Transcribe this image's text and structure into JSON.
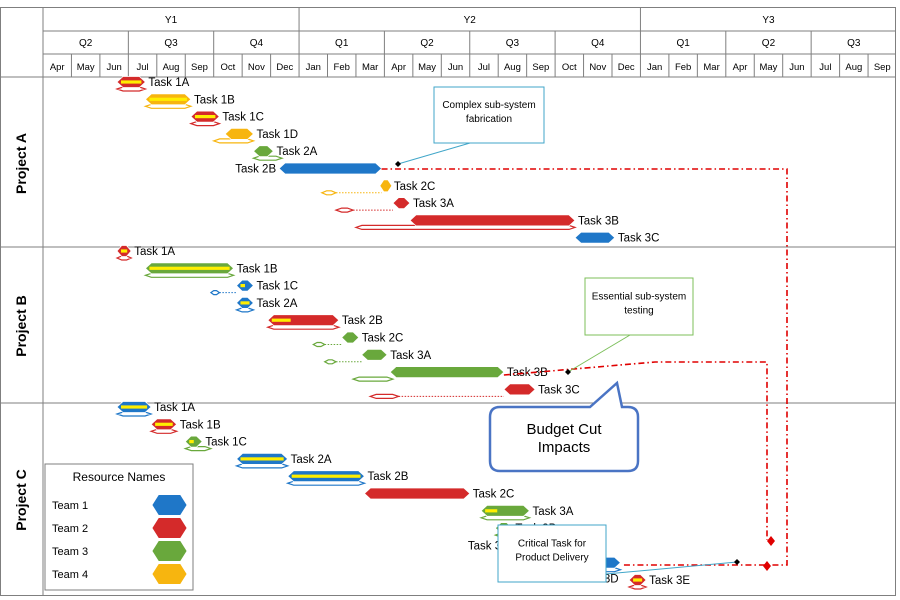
{
  "chart_data": {
    "type": "gantt",
    "timeline": {
      "years": [
        {
          "label": "Y1",
          "start": 0,
          "end": 9
        },
        {
          "label": "Y2",
          "start": 9,
          "end": 21
        },
        {
          "label": "Y3",
          "start": 21,
          "end": 30
        }
      ],
      "quarters": [
        {
          "label": "Q2",
          "start": 0,
          "end": 3
        },
        {
          "label": "Q3",
          "start": 3,
          "end": 6
        },
        {
          "label": "Q4",
          "start": 6,
          "end": 9
        },
        {
          "label": "Q1",
          "start": 9,
          "end": 12
        },
        {
          "label": "Q2",
          "start": 12,
          "end": 15
        },
        {
          "label": "Q3",
          "start": 15,
          "end": 18
        },
        {
          "label": "Q4",
          "start": 18,
          "end": 21
        },
        {
          "label": "Q1",
          "start": 21,
          "end": 24
        },
        {
          "label": "Q2",
          "start": 24,
          "end": 27
        },
        {
          "label": "Q3",
          "start": 27,
          "end": 30
        }
      ],
      "months": [
        "Apr",
        "May",
        "Jun",
        "Jul",
        "Aug",
        "Sep",
        "Oct",
        "Nov",
        "Dec",
        "Jan",
        "Feb",
        "Mar",
        "Apr",
        "May",
        "Jun",
        "Jul",
        "Aug",
        "Sep",
        "Oct",
        "Nov",
        "Dec",
        "Jan",
        "Feb",
        "Mar",
        "Apr",
        "May",
        "Jun",
        "Jul",
        "Aug",
        "Sep"
      ]
    },
    "projects": [
      {
        "name": "Project A",
        "tasks": [
          {
            "label": "Task 1A",
            "team": 2,
            "start": 2.6,
            "end": 3.6,
            "baseline": [
              2.6,
              3.6
            ],
            "progress": 1
          },
          {
            "label": "Task 1B",
            "team": 4,
            "start": 3.6,
            "end": 5.2,
            "baseline": [
              3.6,
              5.2
            ],
            "progress": 1
          },
          {
            "label": "Task 1C",
            "team": 2,
            "start": 5.2,
            "end": 6.2,
            "baseline": [
              5.2,
              6.2
            ],
            "progress": 1
          },
          {
            "label": "Task 1D",
            "team": 4,
            "start": 6.4,
            "end": 7.4,
            "baseline": [
              6.0,
              7.4
            ],
            "progress": 0
          },
          {
            "label": "Task 2A",
            "team": 3,
            "start": 7.4,
            "end": 8.1,
            "baseline": [
              7.4,
              8.4
            ],
            "progress": 0
          },
          {
            "label": "Task 2B",
            "team": 1,
            "start": 8.3,
            "end": 11.9,
            "baseline": null,
            "progress": 0,
            "label_left": true
          },
          {
            "label": "Task 2C",
            "team": 4,
            "start": 11.9,
            "end": 12.2,
            "baseline": [
              9.8,
              10.3
            ],
            "progress": 0,
            "slip": true,
            "milestone": true
          },
          {
            "label": "Task 3A",
            "team": 2,
            "start": 12.3,
            "end": 12.9,
            "baseline": [
              10.3,
              10.9
            ],
            "progress": 0,
            "slip": true
          },
          {
            "label": "Task 3B",
            "team": 2,
            "start": 12.9,
            "end": 18.7,
            "baseline": [
              11.0,
              18.7
            ],
            "progress": 0
          },
          {
            "label": "Task 3C",
            "team": 1,
            "start": 18.7,
            "end": 20.1,
            "baseline": null,
            "progress": 0
          }
        ]
      },
      {
        "name": "Project B",
        "tasks": [
          {
            "label": "Task 1A",
            "team": 2,
            "start": 2.6,
            "end": 3.1,
            "baseline": [
              2.6,
              3.1
            ],
            "progress": 1
          },
          {
            "label": "Task 1B",
            "team": 3,
            "start": 3.6,
            "end": 6.7,
            "baseline": [
              3.6,
              6.7
            ],
            "progress": 1
          },
          {
            "label": "Task 1C",
            "team": 1,
            "start": 6.8,
            "end": 7.4,
            "baseline": [
              5.9,
              6.2
            ],
            "progress": 0.5,
            "slip": true
          },
          {
            "label": "Task 2A",
            "team": 1,
            "start": 6.8,
            "end": 7.4,
            "baseline": [
              6.8,
              7.4
            ],
            "progress": 1
          },
          {
            "label": "Task 2B",
            "team": 2,
            "start": 7.9,
            "end": 10.4,
            "baseline": [
              7.9,
              10.4
            ],
            "progress": 0.3
          },
          {
            "label": "Task 2C",
            "team": 3,
            "start": 10.5,
            "end": 11.1,
            "baseline": [
              9.5,
              9.9
            ],
            "progress": 0,
            "slip": true
          },
          {
            "label": "Task 3A",
            "team": 3,
            "start": 11.2,
            "end": 12.1,
            "baseline": [
              9.9,
              10.3
            ],
            "progress": 0,
            "slip": true
          },
          {
            "label": "Task 3B",
            "team": 3,
            "start": 12.2,
            "end": 16.2,
            "baseline": [
              10.9,
              12.3
            ],
            "progress": 0
          },
          {
            "label": "Task 3C",
            "team": 2,
            "start": 16.2,
            "end": 17.3,
            "baseline": [
              11.5,
              12.5
            ],
            "progress": 0,
            "slip": true
          }
        ]
      },
      {
        "name": "Project C",
        "tasks": [
          {
            "label": "Task 1A",
            "team": 1,
            "start": 2.6,
            "end": 3.8,
            "baseline": [
              2.6,
              3.8
            ],
            "progress": 1
          },
          {
            "label": "Task 1B",
            "team": 2,
            "start": 3.8,
            "end": 4.7,
            "baseline": [
              3.8,
              4.7
            ],
            "progress": 1
          },
          {
            "label": "Task 1C",
            "team": 3,
            "start": 5.0,
            "end": 5.6,
            "baseline": [
              5.0,
              5.9
            ],
            "progress": 0.5
          },
          {
            "label": "Task 2A",
            "team": 1,
            "start": 6.8,
            "end": 8.6,
            "baseline": [
              6.8,
              8.6
            ],
            "progress": 1
          },
          {
            "label": "Task 2B",
            "team": 1,
            "start": 8.6,
            "end": 11.3,
            "baseline": [
              8.6,
              11.3
            ],
            "progress": 1
          },
          {
            "label": "Task 2C",
            "team": 2,
            "start": 11.3,
            "end": 15.0,
            "baseline": null,
            "progress": 0
          },
          {
            "label": "Task 3A",
            "team": 3,
            "start": 15.4,
            "end": 17.1,
            "baseline": [
              15.4,
              17.1
            ],
            "progress": 0.3
          },
          {
            "label": "Task 3B",
            "team": 3,
            "start": 15.9,
            "end": 16.5,
            "baseline": [
              15.9,
              16.5
            ],
            "progress": 0.5
          },
          {
            "label": "Task 3C",
            "team": 3,
            "start": 16.5,
            "end": 18.7,
            "baseline": [
              16.5,
              18.7
            ],
            "progress": 0.2,
            "label_left": true
          },
          {
            "label": "Task 3D",
            "team": 1,
            "start": 18.7,
            "end": 20.3,
            "baseline": [
              18.7,
              20.3
            ],
            "progress": 0.5,
            "label_below": true
          },
          {
            "label": "Task 3E",
            "team": 2,
            "start": 20.6,
            "end": 21.2,
            "baseline": [
              20.6,
              21.2
            ],
            "progress": 1
          }
        ]
      }
    ],
    "legend": {
      "title": "Resource Names",
      "items": [
        {
          "name": "Team 1",
          "team": 1
        },
        {
          "name": "Team 2",
          "team": 2
        },
        {
          "name": "Team 3",
          "team": 3
        },
        {
          "name": "Team 4",
          "team": 4
        }
      ]
    },
    "callouts": [
      {
        "lines": [
          "Complex sub-system",
          "fabrication"
        ],
        "color": "#41a6c9"
      },
      {
        "lines": [
          "Essential sub-system",
          "testing"
        ],
        "color": "#7cbf5a"
      },
      {
        "lines": [
          "Critical Task for",
          "Product Delivery"
        ],
        "color": "#41a6c9"
      },
      {
        "lines": [
          "Budget Cut",
          "Impacts"
        ],
        "color": "#4a74c4"
      }
    ],
    "colors": {
      "team1": "#1f77c8",
      "team2": "#d42a2a",
      "team3": "#69a83c",
      "team4": "#f7b50f",
      "progress": "#ffee00",
      "grid": "#7f7f7f",
      "dependency": "#e00000"
    }
  }
}
